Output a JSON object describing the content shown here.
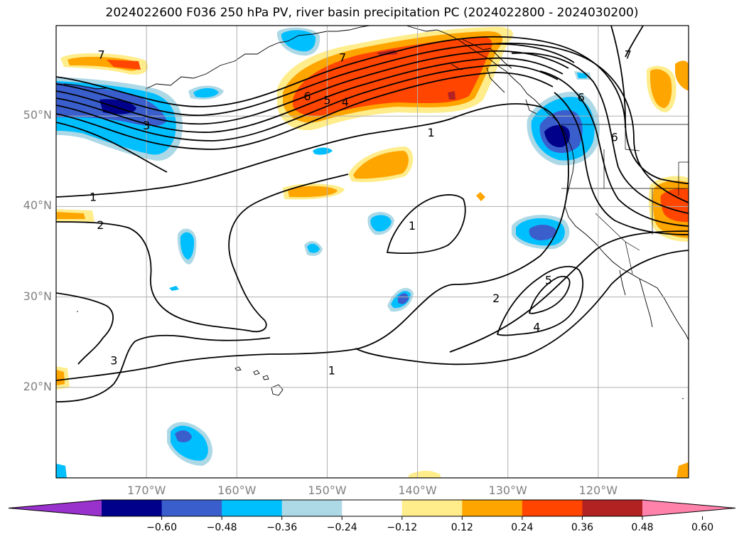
{
  "title": "2024022600 F036 250 hPa PV, river basin precipitation PC (2024022800 - 2024030200)",
  "map": {
    "lon_range": [
      -180,
      -110
    ],
    "lat_range": [
      10,
      60
    ],
    "lat_ticks": [
      {
        "value": 50,
        "label": "50°N"
      },
      {
        "value": 40,
        "label": "40°N"
      },
      {
        "value": 30,
        "label": "30°N"
      },
      {
        "value": 20,
        "label": "20°N"
      }
    ],
    "lon_ticks": [
      {
        "value": -170,
        "label": "170°W"
      },
      {
        "value": -160,
        "label": "160°W"
      },
      {
        "value": -150,
        "label": "150°W"
      },
      {
        "value": -140,
        "label": "140°W"
      },
      {
        "value": -130,
        "label": "130°W"
      },
      {
        "value": -120,
        "label": "120°W"
      }
    ],
    "grid": true,
    "contour_labels": [
      {
        "text": "7",
        "lon": -175,
        "lat": 56.8
      },
      {
        "text": "7",
        "lon": -148.3,
        "lat": 56.5
      },
      {
        "text": "6",
        "lon": -152.2,
        "lat": 52.2
      },
      {
        "text": "5",
        "lon": -150.0,
        "lat": 51.8
      },
      {
        "text": "4",
        "lon": -148.0,
        "lat": 51.6
      },
      {
        "text": "3",
        "lon": -170.0,
        "lat": 49.0
      },
      {
        "text": "1",
        "lon": -138.5,
        "lat": 48.2
      },
      {
        "text": "1",
        "lon": -175.9,
        "lat": 41.1
      },
      {
        "text": "2",
        "lon": -175.1,
        "lat": 38.0
      },
      {
        "text": "1",
        "lon": -140.6,
        "lat": 37.9
      },
      {
        "text": "5",
        "lon": -125.5,
        "lat": 31.9
      },
      {
        "text": "2",
        "lon": -131.3,
        "lat": 29.9
      },
      {
        "text": "4",
        "lon": -126.8,
        "lat": 26.7
      },
      {
        "text": "3",
        "lon": -173.6,
        "lat": 23.0
      },
      {
        "text": "1",
        "lon": -149.5,
        "lat": 21.9
      },
      {
        "text": "7",
        "lon": -116.7,
        "lat": 56.8
      },
      {
        "text": "6",
        "lon": -118.2,
        "lat": 47.7
      },
      {
        "text": "6",
        "lon": -121.9,
        "lat": 52.1
      }
    ]
  },
  "colorbar": {
    "colors": [
      "#9932cc",
      "#00008b",
      "#3a5fcd",
      "#00bfff",
      "#add8e6",
      "#ffffff",
      "#ffec8b",
      "#ffa500",
      "#ff4500",
      "#b22222",
      "#ff82ab"
    ],
    "ticks": [
      "−0.60",
      "−0.48",
      "−0.36",
      "−0.24",
      "−0.12",
      "0.12",
      "0.24",
      "0.36",
      "0.48",
      "0.60"
    ]
  }
}
